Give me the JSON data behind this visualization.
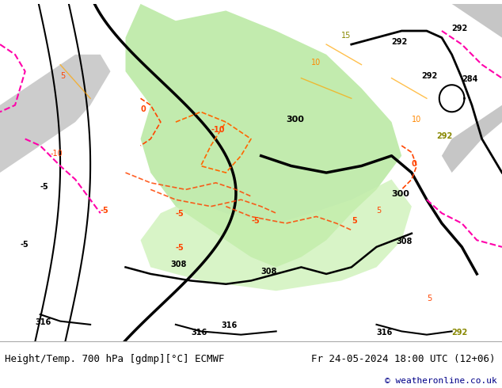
{
  "title_left": "Height/Temp. 700 hPa [gdmp][°C] ECMWF",
  "title_right": "Fr 24-05-2024 18:00 UTC (12+06)",
  "copyright": "© weatheronline.co.uk",
  "bg_color": "#ffffff",
  "map_bg": "#e8e8e8",
  "land_color": "#d0d0d0",
  "green_fill": "#b8e8a0",
  "bottom_bar_color": "#e0e0f0",
  "title_color": "#000000",
  "bottom_bar_height": 0.12,
  "font_size_title": 9,
  "font_size_copy": 8
}
